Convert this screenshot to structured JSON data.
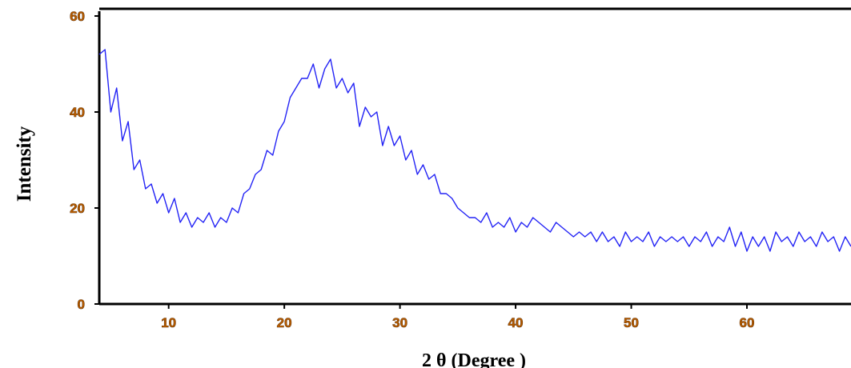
{
  "chart_data": {
    "type": "line",
    "title": "",
    "xlabel": "2 θ (Degree )",
    "ylabel": "Intensity",
    "xlim": [
      4,
      69
    ],
    "ylim": [
      0,
      61
    ],
    "xticks": [
      "10",
      "20",
      "30",
      "40",
      "50",
      "60"
    ],
    "yticks": [
      "0",
      "20",
      "40",
      "60"
    ],
    "grid": false,
    "legend": "none",
    "colors": {
      "line": "#2323f5",
      "tick_label": "#b35a00",
      "axis": "#000000"
    },
    "series": [
      {
        "x": [
          4,
          4.5,
          5,
          5.5,
          6,
          6.5,
          7,
          7.5,
          8,
          8.5,
          9,
          9.5,
          10,
          10.5,
          11,
          11.5,
          12,
          12.5,
          13,
          13.5,
          14,
          14.5,
          15,
          15.5,
          16,
          16.5,
          17,
          17.5,
          18,
          18.5,
          19,
          19.5,
          20,
          20.5,
          21,
          21.5,
          22,
          22.5,
          23,
          23.5,
          24,
          24.5,
          25,
          25.5,
          26,
          26.5,
          27,
          27.5,
          28,
          28.5,
          29,
          29.5,
          30,
          30.5,
          31,
          31.5,
          32,
          32.5,
          33,
          33.5,
          34,
          34.5,
          35,
          35.5,
          36,
          36.5,
          37,
          37.5,
          38,
          38.5,
          39,
          39.5,
          40,
          40.5,
          41,
          41.5,
          42,
          42.5,
          43,
          43.5,
          44,
          44.5,
          45,
          45.5,
          46,
          46.5,
          47,
          47.5,
          48,
          48.5,
          49,
          49.5,
          50,
          50.5,
          51,
          51.5,
          52,
          52.5,
          53,
          53.5,
          54,
          54.5,
          55,
          55.5,
          56,
          56.5,
          57,
          57.5,
          58,
          58.5,
          59,
          59.5,
          60,
          60.5,
          61,
          61.5,
          62,
          62.5,
          63,
          63.5,
          64,
          64.5,
          65,
          65.5,
          66,
          66.5,
          67,
          67.5,
          68,
          68.5,
          69
        ],
        "y": [
          52,
          53,
          40,
          45,
          34,
          38,
          28,
          30,
          24,
          25,
          21,
          23,
          19,
          22,
          17,
          19,
          16,
          18,
          17,
          19,
          16,
          18,
          17,
          20,
          19,
          23,
          24,
          27,
          28,
          32,
          31,
          36,
          38,
          43,
          45,
          47,
          47,
          50,
          45,
          49,
          51,
          45,
          47,
          44,
          46,
          37,
          41,
          39,
          40,
          33,
          37,
          33,
          35,
          30,
          32,
          27,
          29,
          26,
          27,
          23,
          23,
          22,
          20,
          19,
          18,
          18,
          17,
          19,
          16,
          17,
          16,
          18,
          15,
          17,
          16,
          18,
          17,
          16,
          15,
          17,
          16,
          15,
          14,
          15,
          14,
          15,
          13,
          15,
          13,
          14,
          12,
          15,
          13,
          14,
          13,
          15,
          12,
          14,
          13,
          14,
          13,
          14,
          12,
          14,
          13,
          15,
          12,
          14,
          13,
          16,
          12,
          15,
          11,
          14,
          12,
          14,
          11,
          15,
          13,
          14,
          12,
          15,
          13,
          14,
          12,
          15,
          13,
          14,
          11,
          14,
          12
        ]
      }
    ]
  }
}
